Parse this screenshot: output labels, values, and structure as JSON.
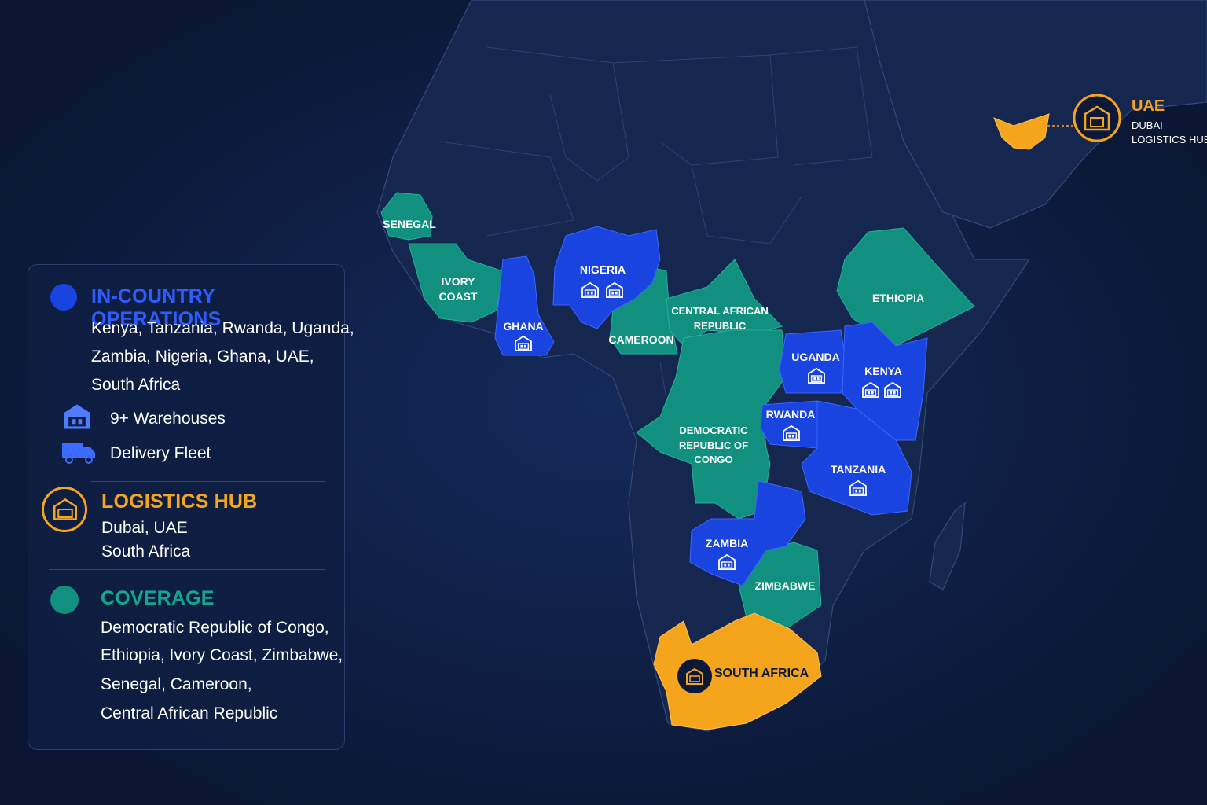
{
  "map": {
    "countries": {
      "senegal": "SENEGAL",
      "ivory_coast": [
        "IVORY",
        "COAST"
      ],
      "ghana": "GHANA",
      "nigeria": "NIGERIA",
      "cameroon": "CAMEROON",
      "car": [
        "CENTRAL AFRICAN",
        "REPUBLIC"
      ],
      "ethiopia": "ETHIOPIA",
      "uganda": "UGANDA",
      "kenya": "KENYA",
      "rwanda": "RWANDA",
      "drc": [
        "DEMOCRATIC",
        "REPUBLIC OF",
        "CONGO"
      ],
      "tanzania": "TANZANIA",
      "zambia": "ZAMBIA",
      "zimbabwe": "ZIMBABWE",
      "south_africa": "SOUTH AFRICA"
    },
    "uae_callout": {
      "title": "UAE",
      "line1": "DUBAI",
      "line2": "LOGISTICS HUB"
    }
  },
  "legend": {
    "operations": {
      "title": "IN-COUNTRY OPERATIONS",
      "lines": [
        "Kenya, Tanzania, Rwanda, Uganda,",
        "Zambia, Nigeria, Ghana, UAE,",
        "South Africa"
      ],
      "warehouses": "9+ Warehouses",
      "fleet": "Delivery Fleet"
    },
    "hub": {
      "title": "LOGISTICS HUB",
      "lines": [
        "Dubai, UAE",
        "South Africa"
      ]
    },
    "coverage": {
      "title": "COVERAGE",
      "lines": [
        "Democratic Republic of Congo,",
        "Ethiopia, Ivory Coast, Zimbabwe,",
        "Senegal, Cameroon,",
        "Central African Republic"
      ]
    }
  },
  "colors": {
    "background": "#0a1633",
    "land": "#15264f",
    "operations": "#1a44e0",
    "coverage": "#12907f",
    "hub": "#f5a51c"
  },
  "icons": [
    "warehouse-icon",
    "truck-icon",
    "hub-warehouse-icon"
  ]
}
